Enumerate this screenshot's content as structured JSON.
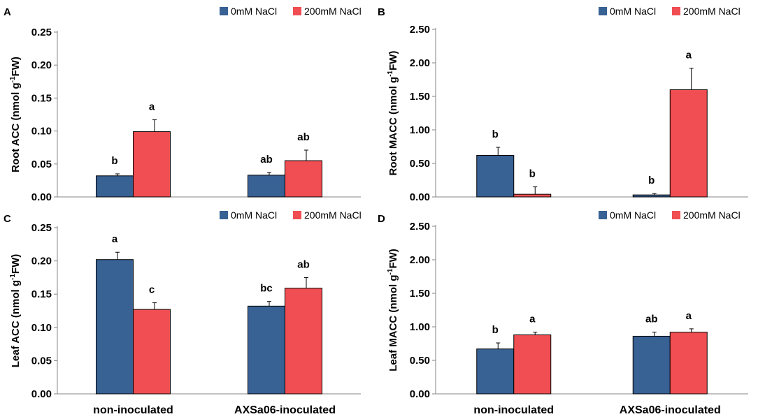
{
  "figure": {
    "categories": [
      "non-inoculated",
      "AXSa06-inoculated"
    ],
    "legend": [
      "0mM NaCl",
      "200mM NaCl"
    ],
    "colors": {
      "control": "#386194",
      "salt": "#f04e52",
      "axis": "#868686",
      "text": "#000000"
    }
  },
  "chart_data": [
    {
      "panel": "A",
      "type": "bar",
      "ylabel": "Root ACC (nmol g",
      "ylabel_sup": "-1",
      "ylabel_end": "FW)",
      "ylim": [
        0,
        0.25
      ],
      "yticks": [
        "0.00",
        "0.05",
        "0.10",
        "0.15",
        "0.20",
        "0.25"
      ],
      "categories": [
        "non-inoculated",
        "AXSa06-inoculated"
      ],
      "series": [
        {
          "name": "0mM NaCl",
          "values": [
            0.032,
            0.033
          ],
          "errors": [
            0.003,
            0.004
          ],
          "letters": [
            "b",
            "ab"
          ]
        },
        {
          "name": "200mM NaCl",
          "values": [
            0.099,
            0.055
          ],
          "errors": [
            0.018,
            0.016
          ],
          "letters": [
            "a",
            "ab"
          ]
        }
      ]
    },
    {
      "panel": "B",
      "type": "bar",
      "ylabel": "Root MACC (nmol g",
      "ylabel_sup": "-1",
      "ylabel_end": "FW)",
      "ylim": [
        0,
        2.5
      ],
      "yticks": [
        "0.00",
        "0.50",
        "1.00",
        "1.50",
        "2.00",
        "2.50"
      ],
      "categories": [
        "non-inoculated",
        "AXSa06-inoculated"
      ],
      "series": [
        {
          "name": "0mM NaCl",
          "values": [
            0.62,
            0.03
          ],
          "errors": [
            0.12,
            0.02
          ],
          "letters": [
            "b",
            "b"
          ]
        },
        {
          "name": "200mM NaCl",
          "values": [
            0.04,
            1.6
          ],
          "errors": [
            0.11,
            0.32
          ],
          "letters": [
            "b",
            "a"
          ]
        }
      ]
    },
    {
      "panel": "C",
      "type": "bar",
      "ylabel": "Leaf ACC (nmol g",
      "ylabel_sup": "-1",
      "ylabel_end": "FW)",
      "ylim": [
        0,
        0.25
      ],
      "yticks": [
        "0.00",
        "0.05",
        "0.10",
        "0.15",
        "0.20",
        "0.25"
      ],
      "categories": [
        "non-inoculated",
        "AXSa06-inoculated"
      ],
      "series": [
        {
          "name": "0mM NaCl",
          "values": [
            0.202,
            0.132
          ],
          "errors": [
            0.011,
            0.007
          ],
          "letters": [
            "a",
            "bc"
          ]
        },
        {
          "name": "200mM NaCl",
          "values": [
            0.127,
            0.159
          ],
          "errors": [
            0.01,
            0.016
          ],
          "letters": [
            "c",
            "ab"
          ]
        }
      ]
    },
    {
      "panel": "D",
      "type": "bar",
      "ylabel": "Leaf MACC (nmol g",
      "ylabel_sup": "-1",
      "ylabel_end": "FW)",
      "ylim": [
        0,
        2.5
      ],
      "yticks": [
        "0.00",
        "0.50",
        "1.00",
        "1.50",
        "2.00",
        "2.50"
      ],
      "categories": [
        "non-inoculated",
        "AXSa06-inoculated"
      ],
      "series": [
        {
          "name": "0mM NaCl",
          "values": [
            0.67,
            0.86
          ],
          "errors": [
            0.09,
            0.06
          ],
          "letters": [
            "b",
            "ab"
          ]
        },
        {
          "name": "200mM NaCl",
          "values": [
            0.88,
            0.92
          ],
          "errors": [
            0.04,
            0.05
          ],
          "letters": [
            "a",
            "a"
          ]
        }
      ]
    }
  ]
}
